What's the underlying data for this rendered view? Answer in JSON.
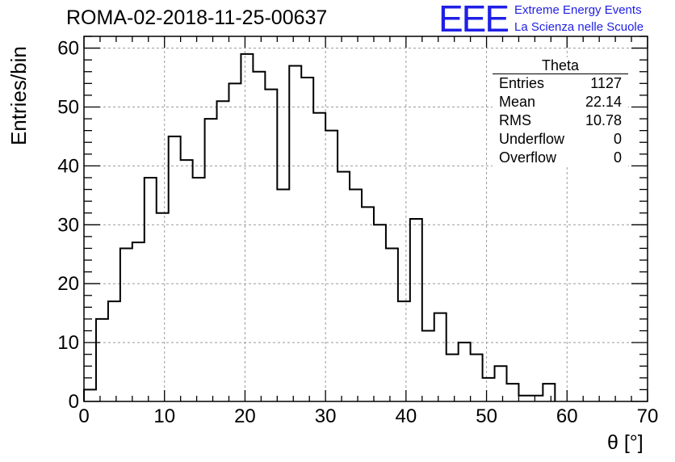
{
  "header": {
    "title": "ROMA-02-2018-11-25-00637",
    "logo_text": "EEE",
    "org_line1": "Extreme Energy Events",
    "org_line2": "La Scienza nelle Scuole"
  },
  "stats_box": {
    "name": "Theta",
    "rows": [
      {
        "label": "Entries",
        "value": "1127"
      },
      {
        "label": "Mean",
        "value": "22.14"
      },
      {
        "label": "RMS",
        "value": "10.78"
      },
      {
        "label": "Underflow",
        "value": "0"
      },
      {
        "label": "Overflow",
        "value": "0"
      }
    ]
  },
  "colors": {
    "line": "#000000",
    "grid": "#9a9a9a",
    "logo": "#1f1fe6",
    "background": "#ffffff"
  },
  "chart_data": {
    "type": "histogram",
    "title": "ROMA-02-2018-11-25-00637",
    "xlabel": "θ [°]",
    "ylabel": "Entries/bin",
    "xlim": [
      0,
      70
    ],
    "ylim": [
      0,
      62
    ],
    "grid": true,
    "x_ticks": [
      0,
      10,
      20,
      30,
      40,
      50,
      60,
      70
    ],
    "y_ticks": [
      0,
      10,
      20,
      30,
      40,
      50,
      60
    ],
    "bin_width": 1.5,
    "bin_start": 0,
    "values": [
      2,
      14,
      17,
      26,
      27,
      38,
      32,
      45,
      41,
      38,
      48,
      51,
      54,
      59,
      56,
      53,
      36,
      57,
      55,
      49,
      46,
      39,
      36,
      33,
      30,
      26,
      17,
      31,
      12,
      15,
      8,
      10,
      8,
      4,
      6,
      3,
      1,
      1,
      3
    ]
  }
}
